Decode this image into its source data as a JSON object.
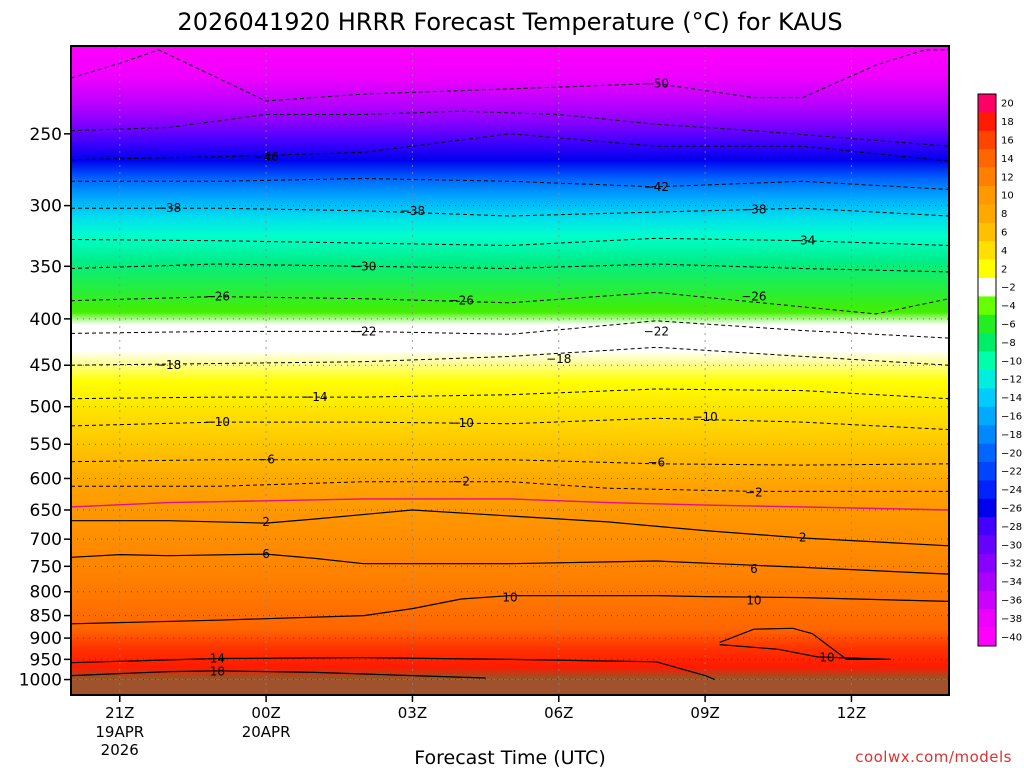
{
  "chart_data": {
    "type": "heatmap",
    "title": "2026041920 HRRR Forecast Temperature (°C) for KAUS",
    "xlabel": "Forecast Time (UTC)",
    "ylabel": "",
    "credit": "coolwx.com/models",
    "x_ticks": [
      {
        "hour": 1,
        "label": "21Z",
        "sub1": "19APR",
        "sub2": "2026"
      },
      {
        "hour": 4,
        "label": "00Z",
        "sub1": "20APR",
        "sub2": ""
      },
      {
        "hour": 7,
        "label": "03Z",
        "sub1": "",
        "sub2": ""
      },
      {
        "hour": 10,
        "label": "06Z",
        "sub1": "",
        "sub2": ""
      },
      {
        "hour": 13,
        "label": "09Z",
        "sub1": "",
        "sub2": ""
      },
      {
        "hour": 16,
        "label": "12Z",
        "sub1": "",
        "sub2": ""
      }
    ],
    "x_range_hours": [
      0,
      18
    ],
    "y_axis": {
      "type": "pressure",
      "units": "hPa",
      "range": [
        1040,
        200
      ],
      "ticks": [
        1000,
        950,
        900,
        850,
        800,
        750,
        700,
        650,
        600,
        550,
        500,
        450,
        400,
        350,
        300,
        250
      ]
    },
    "colorbar": {
      "labels": [
        "20",
        "18",
        "16",
        "14",
        "12",
        "10",
        "8",
        "6",
        "4",
        "2",
        "-2",
        "-4",
        "-6",
        "-8",
        "-10",
        "-12",
        "-14",
        "-16",
        "-18",
        "-20",
        "-22",
        "-24",
        "-26",
        "-28",
        "-30",
        "-32",
        "-34",
        "-36",
        "-38",
        "-40"
      ],
      "colors": [
        "#ff0066",
        "#ff1a00",
        "#ff4400",
        "#ff6600",
        "#ff8000",
        "#ff9900",
        "#ffa800",
        "#ffc000",
        "#ffe000",
        "#ffff00",
        "#ffffff",
        "#66ff00",
        "#22ee22",
        "#00ee66",
        "#00ffaa",
        "#00eedd",
        "#00ccff",
        "#00aaff",
        "#0088ff",
        "#0066ff",
        "#0044ff",
        "#0022ff",
        "#0000ee",
        "#4400ff",
        "#6600ff",
        "#8800ff",
        "#aa00ff",
        "#cc00ff",
        "#ee00ff",
        "#ff00ff"
      ]
    },
    "series": [
      {
        "name": "18",
        "style": "solid",
        "points": [
          [
            0,
            990
          ],
          [
            2,
            980
          ],
          [
            3,
            978
          ],
          [
            5,
            982
          ],
          [
            7,
            990
          ],
          [
            8.5,
            996
          ]
        ]
      },
      {
        "name": "14",
        "style": "solid",
        "points": [
          [
            0,
            958
          ],
          [
            3,
            948
          ],
          [
            6,
            946
          ],
          [
            9,
            950
          ],
          [
            12,
            956
          ],
          [
            13,
            990
          ],
          [
            13.2,
            1000
          ]
        ]
      },
      {
        "name": "10",
        "style": "solid",
        "points": [
          [
            0,
            868
          ],
          [
            3,
            860
          ],
          [
            6,
            850
          ],
          [
            7,
            835
          ],
          [
            8,
            815
          ],
          [
            9,
            808
          ],
          [
            12,
            808
          ],
          [
            13,
            810
          ],
          [
            15,
            812
          ],
          [
            18,
            820
          ]
        ]
      },
      {
        "name": "10 (closed)",
        "style": "solid",
        "points": [
          [
            13.3,
            910
          ],
          [
            14,
            880
          ],
          [
            14.8,
            878
          ],
          [
            15.2,
            890
          ],
          [
            15.9,
            950
          ],
          [
            16.8,
            950
          ],
          [
            15.3,
            944
          ],
          [
            14.5,
            926
          ],
          [
            13.3,
            915
          ]
        ]
      },
      {
        "name": "6",
        "style": "solid",
        "points": [
          [
            0,
            733
          ],
          [
            1,
            728
          ],
          [
            2,
            730
          ],
          [
            4,
            727
          ],
          [
            5,
            735
          ],
          [
            6,
            745
          ],
          [
            9,
            745
          ],
          [
            12,
            740
          ],
          [
            15,
            752
          ],
          [
            18,
            765
          ]
        ]
      },
      {
        "name": "2",
        "style": "solid",
        "points": [
          [
            0,
            668
          ],
          [
            2,
            668
          ],
          [
            4,
            672
          ],
          [
            5,
            665
          ],
          [
            7,
            650
          ],
          [
            9,
            660
          ],
          [
            11,
            670
          ],
          [
            13,
            685
          ],
          [
            15,
            698
          ],
          [
            18,
            712
          ]
        ]
      },
      {
        "name": "0",
        "style": "magenta",
        "points": [
          [
            0,
            645
          ],
          [
            2,
            638
          ],
          [
            4,
            635
          ],
          [
            6,
            632
          ],
          [
            9,
            632
          ],
          [
            11,
            638
          ],
          [
            13,
            642
          ],
          [
            15,
            645
          ],
          [
            18,
            650
          ]
        ]
      },
      {
        "name": "-2",
        "style": "dashed",
        "points": [
          [
            0,
            612
          ],
          [
            3,
            612
          ],
          [
            6,
            605
          ],
          [
            9,
            605
          ],
          [
            11,
            615
          ],
          [
            14,
            620
          ],
          [
            16,
            620
          ],
          [
            18,
            620
          ]
        ]
      },
      {
        "name": "-6",
        "style": "dashed",
        "points": [
          [
            0,
            575
          ],
          [
            3,
            572
          ],
          [
            6,
            572
          ],
          [
            9,
            572
          ],
          [
            12,
            578
          ],
          [
            15,
            580
          ],
          [
            18,
            578
          ]
        ]
      },
      {
        "name": "-10",
        "style": "dashed",
        "points": [
          [
            0,
            525
          ],
          [
            3,
            520
          ],
          [
            6,
            520
          ],
          [
            9,
            522
          ],
          [
            12,
            515
          ],
          [
            15,
            520
          ],
          [
            18,
            530
          ]
        ]
      },
      {
        "name": "-14",
        "style": "dashed",
        "points": [
          [
            0,
            490
          ],
          [
            3,
            488
          ],
          [
            6,
            488
          ],
          [
            9,
            485
          ],
          [
            12,
            478
          ],
          [
            15,
            480
          ],
          [
            18,
            490
          ]
        ]
      },
      {
        "name": "-18",
        "style": "dashed",
        "points": [
          [
            0,
            450
          ],
          [
            3,
            448
          ],
          [
            6,
            446
          ],
          [
            9,
            440
          ],
          [
            12,
            430
          ],
          [
            15,
            440
          ],
          [
            18,
            450
          ]
        ]
      },
      {
        "name": "-22",
        "style": "dashed",
        "points": [
          [
            0,
            415
          ],
          [
            3,
            413
          ],
          [
            6,
            413
          ],
          [
            9,
            416
          ],
          [
            12,
            402
          ],
          [
            15,
            412
          ],
          [
            18,
            420
          ]
        ]
      },
      {
        "name": "-26",
        "style": "dashed",
        "points": [
          [
            0,
            382
          ],
          [
            3,
            378
          ],
          [
            6,
            380
          ],
          [
            9,
            384
          ],
          [
            12,
            374
          ],
          [
            15,
            388
          ],
          [
            16.5,
            395
          ],
          [
            18,
            380
          ]
        ]
      },
      {
        "name": "-30",
        "style": "dashed",
        "points": [
          [
            0,
            352
          ],
          [
            3,
            348
          ],
          [
            6,
            350
          ],
          [
            9,
            352
          ],
          [
            12,
            348
          ],
          [
            15,
            352
          ],
          [
            18,
            355
          ]
        ]
      },
      {
        "name": "-34",
        "style": "dashed",
        "points": [
          [
            0,
            327
          ],
          [
            3,
            328
          ],
          [
            6,
            330
          ],
          [
            9,
            332
          ],
          [
            12,
            326
          ],
          [
            15,
            328
          ],
          [
            18,
            332
          ]
        ]
      },
      {
        "name": "-38",
        "style": "dashed",
        "points": [
          [
            0,
            302
          ],
          [
            3,
            302
          ],
          [
            6,
            304
          ],
          [
            9,
            308
          ],
          [
            12,
            305
          ],
          [
            15,
            302
          ],
          [
            18,
            308
          ]
        ]
      },
      {
        "name": "-42",
        "style": "dashed",
        "points": [
          [
            0,
            282
          ],
          [
            3,
            282
          ],
          [
            6,
            280
          ],
          [
            9,
            282
          ],
          [
            12,
            286
          ],
          [
            15,
            282
          ],
          [
            18,
            288
          ]
        ]
      },
      {
        "name": "-46",
        "style": "dashed",
        "points": [
          [
            0,
            267
          ],
          [
            3,
            265
          ],
          [
            6,
            262
          ],
          [
            9,
            250
          ],
          [
            12,
            258
          ],
          [
            15,
            258
          ],
          [
            18,
            268
          ]
        ]
      },
      {
        "name": "-46b",
        "style": "dashed",
        "points": [
          [
            0,
            248
          ],
          [
            2,
            246
          ],
          [
            4,
            238
          ],
          [
            6,
            238
          ],
          [
            8,
            236
          ],
          [
            10,
            238
          ],
          [
            12,
            244
          ],
          [
            14,
            248
          ],
          [
            18,
            258
          ]
        ]
      },
      {
        "name": "-50",
        "style": "dashed",
        "points": [
          [
            0,
            217
          ],
          [
            1,
            209
          ],
          [
            1.8,
            202
          ],
          [
            4,
            230
          ],
          [
            6,
            226
          ],
          [
            8,
            224
          ],
          [
            10,
            222
          ],
          [
            12,
            220
          ],
          [
            14,
            228
          ],
          [
            15,
            228
          ],
          [
            16.5,
            210
          ],
          [
            17.5,
            202
          ],
          [
            18,
            202
          ]
        ]
      }
    ],
    "contour_labels": [
      {
        "text": "18",
        "x": 3.0,
        "p": 980
      },
      {
        "text": "14",
        "x": 3.0,
        "p": 948
      },
      {
        "text": "10",
        "x": 9.0,
        "p": 812
      },
      {
        "text": "10",
        "x": 14.0,
        "p": 818
      },
      {
        "text": "10",
        "x": 15.5,
        "p": 946
      },
      {
        "text": "6",
        "x": 4.0,
        "p": 727
      },
      {
        "text": "6",
        "x": 14.0,
        "p": 755
      },
      {
        "text": "2",
        "x": 4.0,
        "p": 670
      },
      {
        "text": "2",
        "x": 15.0,
        "p": 697
      },
      {
        "text": "-2",
        "x": 8.0,
        "p": 605
      },
      {
        "text": "-2",
        "x": 14.0,
        "p": 622
      },
      {
        "text": "-6",
        "x": 4.0,
        "p": 572
      },
      {
        "text": "-6",
        "x": 12.0,
        "p": 576
      },
      {
        "text": "-10",
        "x": 3.0,
        "p": 520
      },
      {
        "text": "-10",
        "x": 8.0,
        "p": 521
      },
      {
        "text": "-10",
        "x": 13.0,
        "p": 513
      },
      {
        "text": "-14",
        "x": 5.0,
        "p": 488
      },
      {
        "text": "-18",
        "x": 2.0,
        "p": 450
      },
      {
        "text": "-18",
        "x": 10.0,
        "p": 443
      },
      {
        "text": "-22",
        "x": 6.0,
        "p": 413
      },
      {
        "text": "-22",
        "x": 12.0,
        "p": 413
      },
      {
        "text": "-26",
        "x": 3.0,
        "p": 378
      },
      {
        "text": "-26",
        "x": 8.0,
        "p": 382
      },
      {
        "text": "-26",
        "x": 14.0,
        "p": 378
      },
      {
        "text": "-30",
        "x": 6.0,
        "p": 350
      },
      {
        "text": "-34",
        "x": 15.0,
        "p": 328
      },
      {
        "text": "-38",
        "x": 2.0,
        "p": 302
      },
      {
        "text": "-38",
        "x": 7.0,
        "p": 304
      },
      {
        "text": "-38",
        "x": 14.0,
        "p": 303
      },
      {
        "text": "-42",
        "x": 12.0,
        "p": 286
      },
      {
        "text": "-46",
        "x": 4.0,
        "p": 265
      },
      {
        "text": "-50",
        "x": 12.0,
        "p": 220
      }
    ]
  }
}
